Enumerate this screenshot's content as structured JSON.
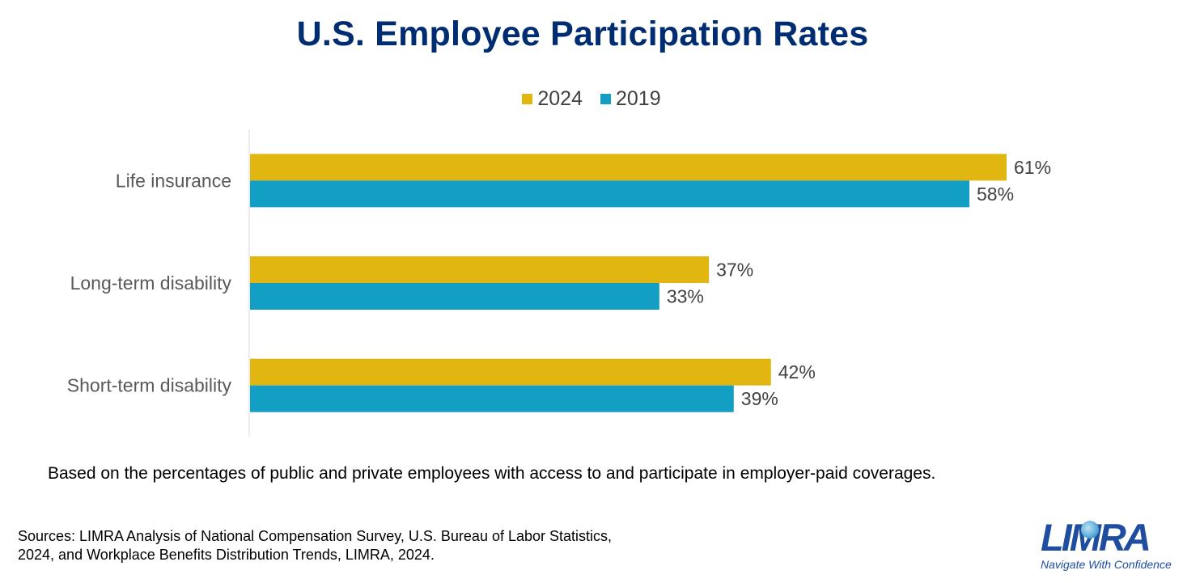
{
  "title": "U.S. Employee Participation Rates",
  "chart_data": {
    "type": "bar",
    "orientation": "horizontal",
    "title": "U.S. Employee Participation Rates",
    "categories": [
      "Life insurance",
      "Long-term disability",
      "Short-term disability"
    ],
    "series": [
      {
        "name": "2024",
        "values": [
          61,
          37,
          42
        ],
        "labels": [
          "61%",
          "37%",
          "42%"
        ],
        "color": "#e2b610"
      },
      {
        "name": "2019",
        "values": [
          58,
          33,
          39
        ],
        "labels": [
          "58%",
          "33%",
          "39%"
        ],
        "color": "#139ec3"
      }
    ],
    "xlim": [
      0,
      65
    ],
    "unit": "%",
    "grid": false,
    "legend_position": "top"
  },
  "note": "Based on the percentages of public and private employees with access to and participate in employer-paid coverages.",
  "sources_line1": "Sources: LIMRA Analysis of National Compensation Survey, U.S. Bureau of Labor Statistics,",
  "sources_line2": "2024, and Workplace Benefits Distribution Trends, LIMRA, 2024.",
  "logo": {
    "text": "LIMRA",
    "tagline": "Navigate With Confidence",
    "color": "#1f4ea1"
  },
  "colors": {
    "title": "#002d72",
    "axis_line": "#d9d9d9",
    "category_label": "#595959",
    "value_label": "#404040"
  }
}
